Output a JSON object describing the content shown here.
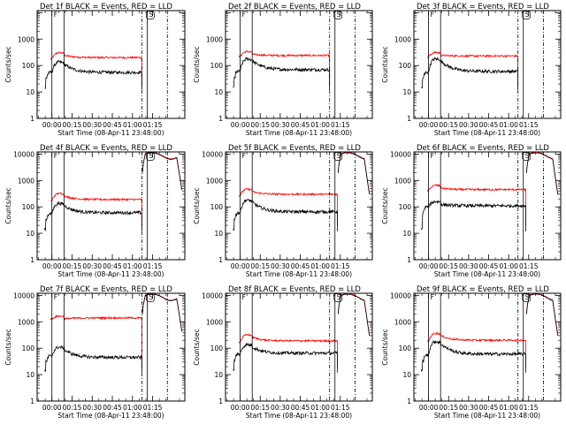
{
  "chart_data": {
    "type": "line",
    "colors": {
      "events": "#000000",
      "lld": "#ff0000",
      "axes": "#000000"
    },
    "y_scale": "log",
    "ylim": [
      1,
      12000
    ],
    "yticks": [
      1,
      10,
      100,
      1000,
      10000
    ],
    "ytick_labels": [
      "1",
      "10",
      "100",
      "1000",
      "10000"
    ],
    "xlim_minutes": [
      -11,
      99
    ],
    "xticks_minutes": [
      0,
      15,
      30,
      45,
      60,
      75
    ],
    "xtick_labels": [
      "00:00",
      "00:15",
      "00:30",
      "00:45",
      "01:00",
      "01:15"
    ],
    "xlabel": "Start Time (08-Apr-11 23:48:00)",
    "ylabel": "Counts/sec",
    "markers": [
      {
        "label": "F",
        "x": 0
      },
      {
        "label": "",
        "x": 9
      },
      {
        "label": "",
        "x": 67,
        "style": "dashdot"
      },
      {
        "label": "S",
        "x": 71
      },
      {
        "label": "",
        "x": 86,
        "style": "dashdot"
      }
    ],
    "panels": [
      {
        "title": "Det 1f BLACK = Events, RED = LLD",
        "ylabels": [
          "1000",
          "100",
          "10",
          "1"
        ],
        "events_base": 55,
        "events_pre": 55,
        "events_peak": 150,
        "events_end": 67,
        "lld_base": 200,
        "lld_peak": 330,
        "lld_end": 67,
        "post_high": false
      },
      {
        "title": "Det 2f BLACK = Events, RED = LLD",
        "ylabels": [
          "1000",
          "100",
          "10",
          "1"
        ],
        "events_base": 70,
        "events_pre": 60,
        "events_peak": 200,
        "events_end": 67,
        "lld_base": 240,
        "lld_peak": 360,
        "lld_end": 67,
        "post_high": false
      },
      {
        "title": "Det 3f BLACK = Events, RED = LLD",
        "ylabels": [
          "1000",
          "100",
          "10",
          "1"
        ],
        "events_base": 60,
        "events_pre": 55,
        "events_peak": 200,
        "events_end": 67,
        "lld_base": 230,
        "lld_peak": 330,
        "lld_end": 67,
        "post_high": false
      },
      {
        "title": "Det 4f BLACK = Events, RED = LLD",
        "ylabels": [
          "10000",
          "1000",
          "100",
          "10",
          "1"
        ],
        "events_base": 60,
        "events_pre": 55,
        "events_peak": 150,
        "events_end": 67,
        "lld_base": 190,
        "lld_peak": 350,
        "lld_end": 67,
        "post_high": true
      },
      {
        "title": "Det 5f BLACK = Events, RED = LLD",
        "ylabels": [
          "10000",
          "1000",
          "100",
          "10",
          "1"
        ],
        "events_base": 65,
        "events_pre": 60,
        "events_peak": 200,
        "events_end": 73,
        "lld_base": 300,
        "lld_peak": 500,
        "lld_end": 73,
        "post_high": true
      },
      {
        "title": "Det 6f BLACK = Events, RED = LLD",
        "ylabels": [
          "10000",
          "1000",
          "100",
          "10",
          "1"
        ],
        "events_base": 110,
        "events_pre": 100,
        "events_peak": 170,
        "events_end": 73,
        "lld_base": 450,
        "lld_peak": 700,
        "lld_end": 73,
        "post_high": true
      },
      {
        "title": "Det 7f BLACK = Events, RED = LLD",
        "ylabels": [
          "10000",
          "1000",
          "100",
          "10",
          "1"
        ],
        "events_base": 45,
        "events_pre": 50,
        "events_peak": 120,
        "events_end": 67,
        "lld_base": 1400,
        "lld_peak": 1700,
        "lld_end": 67,
        "post_high": true
      },
      {
        "title": "Det 8f BLACK = Events, RED = LLD",
        "ylabels": [
          "10000",
          "1000",
          "100",
          "10",
          "1"
        ],
        "events_base": 65,
        "events_pre": 60,
        "events_peak": 150,
        "events_end": 73,
        "lld_base": 190,
        "lld_peak": 350,
        "lld_end": 73,
        "post_high": true
      },
      {
        "title": "Det 9f BLACK = Events, RED = LLD",
        "ylabels": [
          "10000",
          "1000",
          "100",
          "10",
          "1"
        ],
        "events_base": 60,
        "events_pre": 55,
        "events_peak": 200,
        "events_end": 73,
        "lld_base": 200,
        "lld_peak": 400,
        "lld_end": 73,
        "post_high": true
      }
    ]
  }
}
